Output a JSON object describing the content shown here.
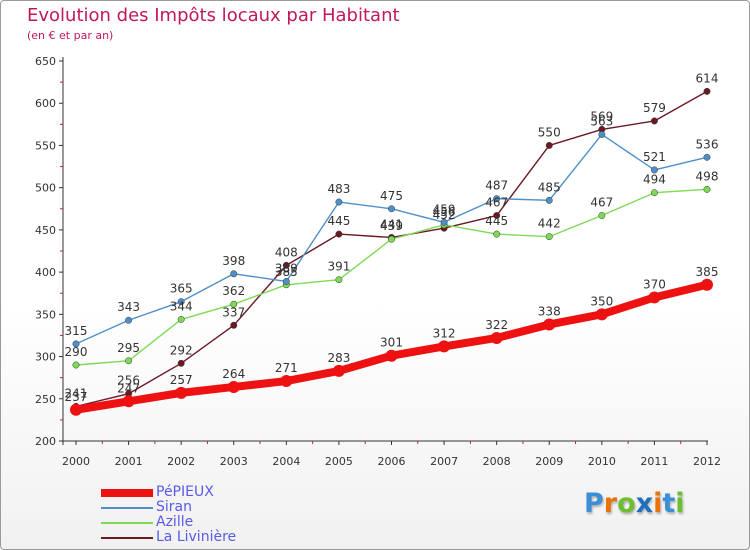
{
  "header": {
    "title": "Evolution des Impôts locaux par Habitant",
    "subtitle": "(en € et par an)"
  },
  "logo": {
    "text": "Proxiti",
    "colors": [
      "#3a8fd6",
      "#e8730a",
      "#6cbf30",
      "#1f6fbf",
      "#e8730a",
      "#3a8fd6",
      "#6cbf30"
    ]
  },
  "chart_data": {
    "type": "line",
    "x": [
      "2000",
      "2001",
      "2002",
      "2003",
      "2004",
      "2005",
      "2006",
      "2007",
      "2008",
      "2009",
      "2010",
      "2011",
      "2012"
    ],
    "ylim": [
      200,
      650
    ],
    "yticks": [
      200,
      250,
      300,
      350,
      400,
      450,
      500,
      550,
      600,
      650
    ],
    "grid": false,
    "legend": "bottom-left",
    "series": [
      {
        "name": "La Livinière",
        "color": "#6b1a24",
        "values": [
          241,
          256,
          292,
          337,
          408,
          445,
          441,
          452,
          467,
          550,
          569,
          579,
          614
        ]
      },
      {
        "name": "Azille",
        "color": "#7ed957",
        "values": [
          290,
          295,
          344,
          362,
          385,
          391,
          439,
          456,
          445,
          442,
          467,
          494,
          498
        ]
      },
      {
        "name": "Siran",
        "color": "#4f8fc9",
        "values": [
          315,
          343,
          365,
          398,
          389,
          483,
          475,
          459,
          487,
          485,
          563,
          521,
          536
        ]
      },
      {
        "name": "PéPIEUX",
        "color": "#ee1111",
        "values": [
          237,
          247,
          257,
          264,
          271,
          283,
          301,
          312,
          322,
          338,
          350,
          370,
          385
        ]
      }
    ]
  }
}
